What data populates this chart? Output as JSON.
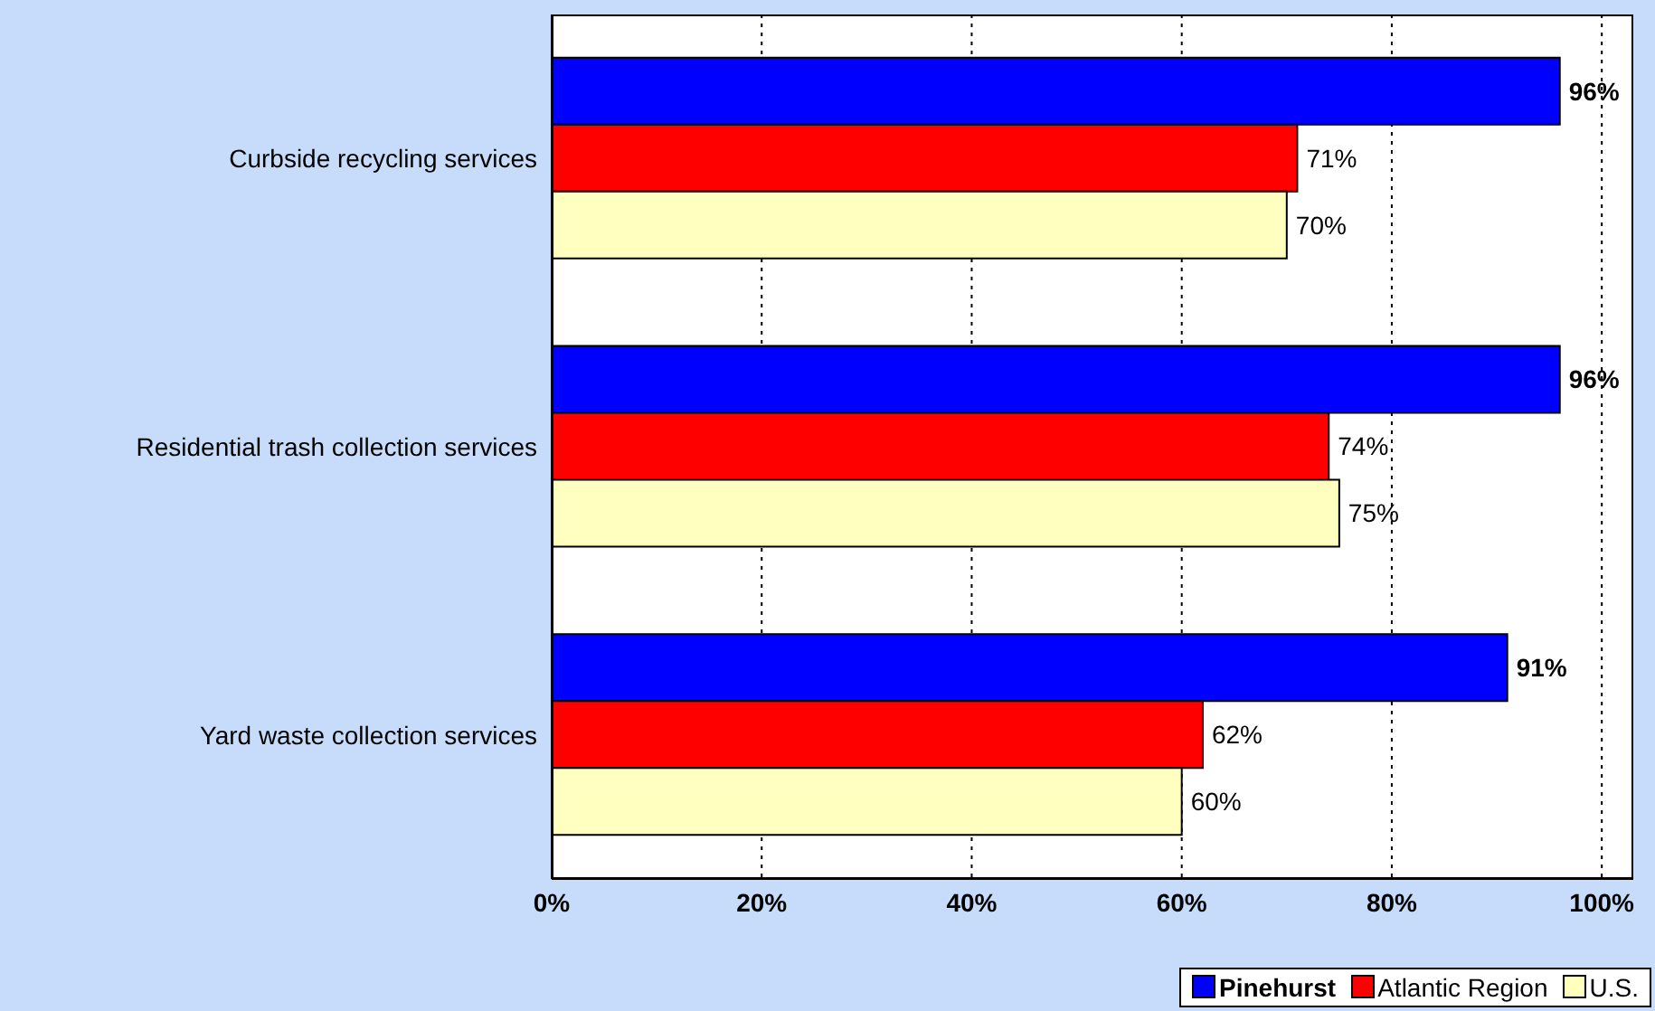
{
  "chart_data": {
    "type": "bar",
    "orientation": "horizontal",
    "categories": [
      "Curbside recycling services",
      "Residential trash collection services",
      "Yard waste collection services"
    ],
    "series": [
      {
        "name": "Pinehurst",
        "color": "#0000ff",
        "values": [
          96,
          96,
          91
        ],
        "value_labels": [
          "96%",
          "96%",
          "91%"
        ]
      },
      {
        "name": "Atlantic Region",
        "color": "#ff0000",
        "values": [
          71,
          74,
          62
        ],
        "value_labels": [
          "71%",
          "74%",
          "62%"
        ]
      },
      {
        "name": "U.S.",
        "color": "#ffffc0",
        "values": [
          70,
          75,
          60
        ],
        "value_labels": [
          "70%",
          "75%",
          "60%"
        ]
      }
    ],
    "xlim": [
      0,
      103
    ],
    "xticks": [
      {
        "value": 0,
        "label": "0%"
      },
      {
        "value": 20,
        "label": "20%"
      },
      {
        "value": 40,
        "label": "40%"
      },
      {
        "value": 60,
        "label": "60%"
      },
      {
        "value": 80,
        "label": "80%"
      },
      {
        "value": 100,
        "label": "100%"
      }
    ],
    "grid": "x",
    "legend": "bottom right"
  }
}
